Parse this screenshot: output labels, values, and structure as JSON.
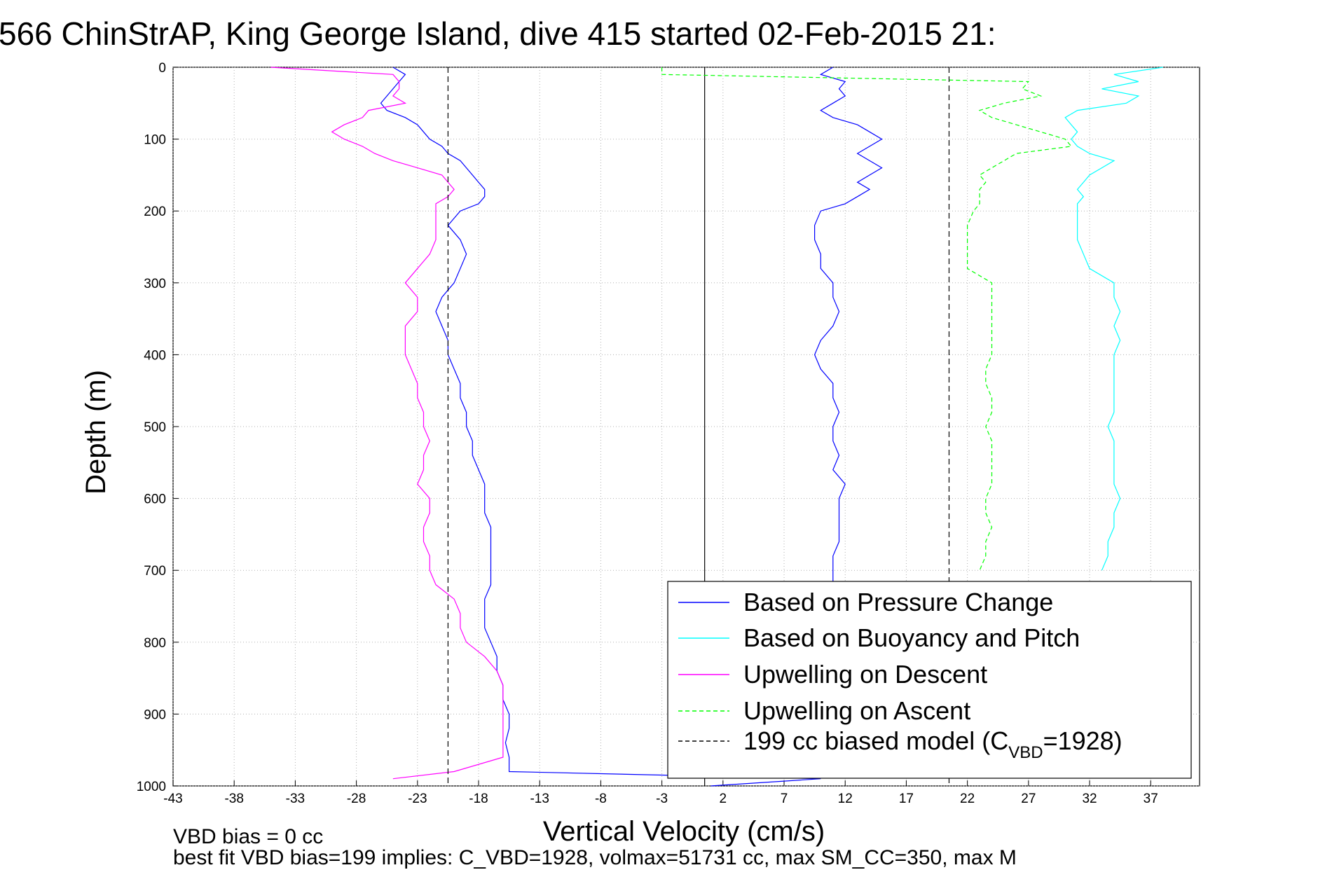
{
  "figure": {
    "title": "566 ChinStrAP, King George Island, dive 415 started 02-Feb-2015 21:",
    "notes": [
      "VBD bias = 0 cc",
      "best fit VBD bias=199 implies: C_VBD=1928, volmax=51731 cc, max SM_CC=350, max M"
    ]
  },
  "chart_data": {
    "type": "line",
    "title": "566 ChinStrAP, King George Island, dive 415 started 02-Feb-2015 21:",
    "xlabel": "Vertical Velocity (cm/s)",
    "ylabel": "Depth (m)",
    "xlim": [
      -43,
      41
    ],
    "ylim": [
      1000,
      0
    ],
    "y_reversed": true,
    "grid": true,
    "legend_position": "lower-right",
    "x_ticks": [
      -43,
      -38,
      -33,
      -28,
      -23,
      -18,
      -13,
      -8,
      -3,
      2,
      7,
      12,
      17,
      22,
      27,
      32,
      37
    ],
    "y_ticks": [
      0,
      100,
      200,
      300,
      400,
      500,
      600,
      700,
      800,
      900,
      1000
    ],
    "series": [
      {
        "name": "Based on Pressure Change",
        "color": "#0000ff",
        "style": "solid",
        "depth": [
          0,
          10,
          20,
          30,
          40,
          50,
          60,
          70,
          80,
          90,
          100,
          110,
          120,
          130,
          140,
          150,
          160,
          170,
          180,
          190,
          200,
          220,
          240,
          260,
          280,
          300,
          320,
          340,
          360,
          380,
          400,
          420,
          440,
          460,
          480,
          500,
          520,
          540,
          560,
          580,
          600,
          620,
          640,
          660,
          680,
          700,
          720,
          740,
          760,
          780,
          800,
          820,
          840,
          860,
          880,
          900,
          920,
          940,
          960,
          980,
          990,
          1000
        ],
        "values": [
          -25,
          -24,
          -24.5,
          -25,
          -25.5,
          -26,
          -25.5,
          -24,
          -23,
          -22.5,
          -22,
          -21,
          -20.5,
          -19.5,
          -19,
          -18.5,
          -18,
          -17.5,
          -17.5,
          -18,
          -19.5,
          -20.5,
          -19.5,
          -19,
          -19.5,
          -20,
          -21,
          -21.5,
          -21,
          -20.5,
          -20.5,
          -20,
          -19.5,
          -19.5,
          -19,
          -19,
          -18.5,
          -18.5,
          -18,
          -17.5,
          -17.5,
          -17.5,
          -17,
          -17,
          -17,
          -17,
          -17,
          -17.5,
          -17.5,
          -17.5,
          -17,
          -16.5,
          -16.5,
          -16,
          -16,
          -15.5,
          -15.5,
          -15.8,
          -15.5,
          -15.5,
          10,
          1
        ],
        "right_depth": [
          0,
          10,
          20,
          30,
          40,
          50,
          60,
          70,
          80,
          90,
          100,
          110,
          120,
          130,
          140,
          150,
          160,
          170,
          180,
          190,
          200,
          220,
          240,
          260,
          280,
          300,
          320,
          340,
          360,
          380,
          400,
          420,
          440,
          460,
          480,
          500,
          520,
          540,
          560,
          580,
          600,
          620,
          640,
          660,
          680,
          700,
          720
        ],
        "right_values": [
          11,
          10,
          12,
          11.5,
          12,
          11,
          10,
          11,
          13,
          14,
          15,
          14,
          13,
          14,
          15,
          14,
          13,
          14,
          13,
          12,
          10,
          9.5,
          9.5,
          10,
          10,
          11,
          11,
          11.5,
          11,
          10,
          9.5,
          10,
          11,
          11,
          11.5,
          11,
          11,
          11.5,
          11,
          12,
          11.5,
          11.5,
          11.5,
          11.5,
          11,
          11,
          11
        ]
      },
      {
        "name": "Based on Buoyancy and Pitch",
        "color": "#00ffff",
        "style": "solid",
        "depth": [
          0,
          10,
          20,
          30,
          40,
          50,
          60,
          70,
          80,
          90,
          100,
          110,
          120,
          130,
          140,
          150,
          160,
          170,
          180,
          190,
          200,
          220,
          240,
          260,
          280,
          300,
          320,
          340,
          360,
          380,
          400,
          420,
          440,
          460,
          480,
          500,
          520,
          540,
          560,
          580,
          600,
          620,
          640,
          660,
          680,
          700
        ],
        "values": [
          38,
          34,
          36,
          33,
          36,
          35,
          31,
          30,
          30.5,
          31,
          30.5,
          31,
          32,
          34,
          33,
          32,
          31.5,
          31,
          31.5,
          31,
          31,
          31,
          31,
          31.5,
          32,
          34,
          34,
          34.5,
          34,
          34.5,
          34,
          34,
          34,
          34,
          34,
          33.5,
          34,
          34,
          34,
          34,
          34.5,
          34,
          34,
          33.5,
          33.5,
          33
        ]
      },
      {
        "name": "Upwelling on Descent",
        "color": "#ff00ff",
        "style": "solid",
        "depth": [
          0,
          10,
          20,
          30,
          40,
          50,
          60,
          70,
          80,
          90,
          100,
          110,
          120,
          130,
          140,
          150,
          160,
          170,
          180,
          190,
          200,
          220,
          240,
          260,
          280,
          300,
          320,
          340,
          360,
          380,
          400,
          420,
          440,
          460,
          480,
          500,
          520,
          540,
          560,
          580,
          600,
          620,
          640,
          660,
          680,
          700,
          720,
          740,
          760,
          780,
          800,
          820,
          840,
          860,
          880,
          900,
          920,
          940,
          960,
          980,
          990
        ],
        "values": [
          -35,
          -25,
          -24.5,
          -24.5,
          -25,
          -24,
          -27,
          -27.5,
          -29,
          -30,
          -29,
          -27.5,
          -26.5,
          -25,
          -23,
          -21,
          -20.5,
          -20,
          -20.5,
          -21.5,
          -21.5,
          -21.5,
          -21.5,
          -22,
          -23,
          -24,
          -23,
          -23,
          -24,
          -24,
          -24,
          -23.5,
          -23,
          -23,
          -22.5,
          -22.5,
          -22,
          -22.5,
          -22.5,
          -23,
          -22,
          -22,
          -22.5,
          -22.5,
          -22,
          -22,
          -21.5,
          -20,
          -19.5,
          -19.5,
          -19,
          -17.5,
          -16.5,
          -16,
          -16,
          -16,
          -16,
          -16,
          -16,
          -20,
          -25
        ]
      },
      {
        "name": "Upwelling on Ascent",
        "color": "#00ff00",
        "style": "dashed",
        "depth": [
          0,
          10,
          20,
          30,
          40,
          50,
          60,
          70,
          80,
          90,
          100,
          110,
          120,
          130,
          140,
          150,
          160,
          170,
          180,
          190,
          200,
          220,
          240,
          260,
          280,
          300,
          320,
          340,
          360,
          380,
          400,
          420,
          440,
          460,
          480,
          500,
          520,
          540,
          560,
          580,
          600,
          620,
          640,
          660,
          680,
          700
        ],
        "values": [
          -3,
          -3,
          27,
          26.5,
          28,
          25,
          23,
          24,
          26,
          28,
          30,
          30.5,
          26,
          25,
          24,
          23,
          23.5,
          23,
          23,
          23,
          22.5,
          22,
          22,
          22,
          22,
          24,
          24,
          24,
          24,
          24,
          24,
          23.5,
          23.5,
          24,
          24,
          23.5,
          24,
          24,
          24,
          24,
          23.5,
          23.5,
          24,
          23.5,
          23.5,
          23
        ]
      },
      {
        "name": "199 cc biased model (C_VBD=1928)",
        "color": "#000000",
        "style": "dashed",
        "x_left": -20.5,
        "x_right": 20.5
      }
    ],
    "zero_line_x": 0.5
  },
  "legend": {
    "items": [
      {
        "text": "Based on Pressure Change",
        "color": "#0000ff",
        "style": "solid"
      },
      {
        "text": "Based on Buoyancy and Pitch",
        "color": "#00ffff",
        "style": "solid"
      },
      {
        "text": "Upwelling on Descent",
        "color": "#ff00ff",
        "style": "solid"
      },
      {
        "text": "Upwelling on Ascent",
        "color": "#00ff00",
        "style": "dashed"
      }
    ],
    "model_prefix": "199 cc biased model (C",
    "model_sub": "VBD",
    "model_suffix": "=1928)",
    "model_color": "#000000"
  }
}
